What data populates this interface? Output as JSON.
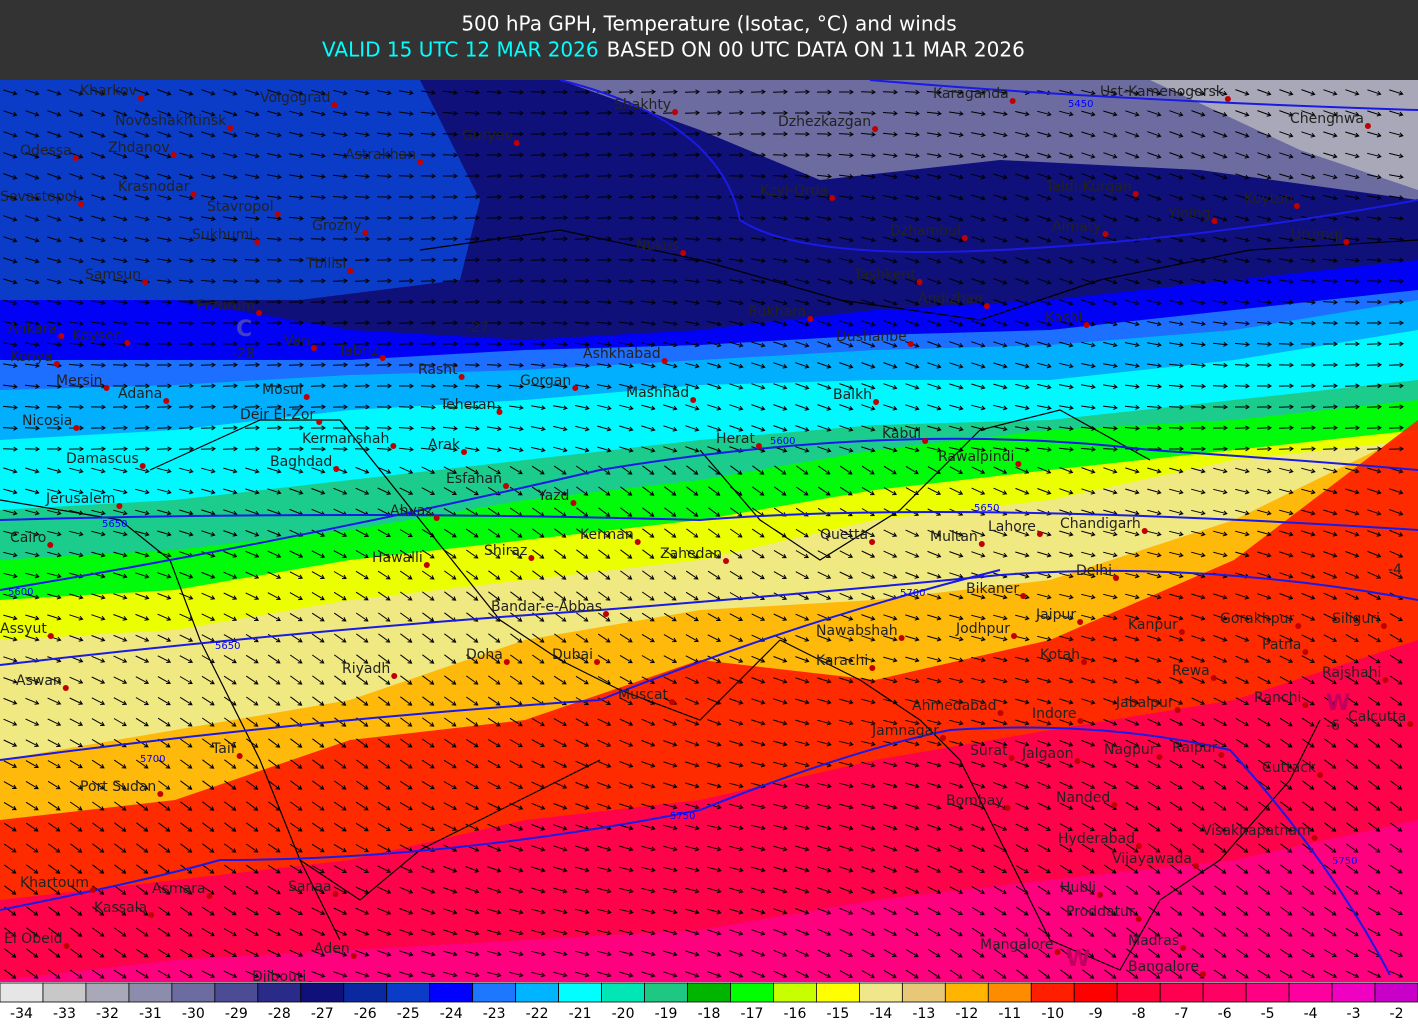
{
  "header": {
    "title": "500 hPa GPH, Temperature (Isotac, °C) and winds",
    "valid": "VALID 15 UTC 12 MAR 2026",
    "based": "BASED ON 00 UTC DATA ON 11 MAR 2026"
  },
  "cities": [
    "Kharkov",
    "Volgograd",
    "Novoshakhtinsk",
    "Odessa",
    "Zhdanov",
    "Astrakhan",
    "Guryev",
    "Shakhty",
    "Dzhezkazgan",
    "Karaganda",
    "Ust-Kamenogorsk",
    "Chenghwa",
    "Sevastopol",
    "Krasnodar",
    "Stavropol",
    "Kzyl-Orda",
    "Taldi-Kurgan",
    "Yining",
    "Kuytun",
    "Sukhumi",
    "Grozny",
    "Nukus",
    "Dzhambul",
    "Almaty",
    "Urumqi",
    "Samsun",
    "Tbilisi",
    "Tashkent",
    "Andizhan",
    "Erzurum",
    "Bukhara",
    "Kashi",
    "Ankara",
    "Kayseri",
    "Van",
    "Tabriz",
    "Dushanbe",
    "Ashkhabad",
    "Konya",
    "Mersin",
    "Mosul",
    "Rasht",
    "Gorgan",
    "Mashhad",
    "Adana",
    "Balkh",
    "Deir El-Zor",
    "Nicosia",
    "Teheran",
    "Kermanshah",
    "Arak",
    "Herat",
    "Kabul",
    "Damascus",
    "Baghdad",
    "Rawalpindi",
    "Esfahan",
    "Jerusalem",
    "Yazd",
    "Ahvaz",
    "Lahore",
    "Chandigarh",
    "Cairo",
    "Kerman",
    "Quetta",
    "Multan",
    "Hawalli",
    "Shiraz",
    "Zahedan",
    "Delhi",
    "Bikaner",
    "Bandar-e-Abbas",
    "Assyut",
    "Jaipur",
    "Kanpur",
    "Gorakhpur",
    "Siliguri",
    "Nawabshah",
    "Jodhpur",
    "Patna",
    "Doha",
    "Dubai",
    "Karachi",
    "Kotah",
    "Riyadh",
    "Rewa",
    "Rajshahi",
    "Aswan",
    "Muscat",
    "Ranchi",
    "Ahmedabad",
    "Indore",
    "Jabalpur",
    "Calcutta",
    "Jamnagar",
    "Taif",
    "Surat",
    "Jalgaon",
    "Nagpur",
    "Raipur",
    "Cuttack",
    "Port Sudan",
    "Bombay",
    "Nanded",
    "Visakhapatnam",
    "Hyderabad",
    "Vijayawada",
    "Khartoum",
    "Asmara",
    "Sanaa",
    "Hubli",
    "Kassala",
    "Proddatur",
    "El Obeid",
    "Madras",
    "Aden",
    "Mangalore",
    "Bangalore",
    "Djibouti"
  ],
  "contour_labels": [
    "5450",
    "5600",
    "5650",
    "5650",
    "5600",
    "5650",
    "5700",
    "5700",
    "5750",
    "5750"
  ],
  "isotac_labels": [
    "-28",
    "-27",
    "-4",
    "-6"
  ],
  "centers": [
    "C",
    "W",
    "W"
  ],
  "legend": [
    {
      "value": -34,
      "color": "#e6e6e6"
    },
    {
      "value": -33,
      "color": "#c8c8c8"
    },
    {
      "value": -32,
      "color": "#a8a8b8"
    },
    {
      "value": -31,
      "color": "#8c8cac"
    },
    {
      "value": -30,
      "color": "#6c6ca0"
    },
    {
      "value": -29,
      "color": "#4c4c94"
    },
    {
      "value": -28,
      "color": "#2a2a88"
    },
    {
      "value": -27,
      "color": "#10107a"
    },
    {
      "value": -26,
      "color": "#0a28a0"
    },
    {
      "value": -25,
      "color": "#0a3cc8"
    },
    {
      "value": -24,
      "color": "#0000ff"
    },
    {
      "value": -23,
      "color": "#1e78ff"
    },
    {
      "value": -22,
      "color": "#00b4ff"
    },
    {
      "value": -21,
      "color": "#00ffff"
    },
    {
      "value": -20,
      "color": "#00e6b4"
    },
    {
      "value": -19,
      "color": "#1ec882"
    },
    {
      "value": -18,
      "color": "#00b400"
    },
    {
      "value": -17,
      "color": "#00ff00"
    },
    {
      "value": -16,
      "color": "#c8ff00"
    },
    {
      "value": -15,
      "color": "#ffff00"
    },
    {
      "value": -14,
      "color": "#f0e68c"
    },
    {
      "value": -13,
      "color": "#e6c878"
    },
    {
      "value": -12,
      "color": "#ffb400"
    },
    {
      "value": -11,
      "color": "#ff8c00"
    },
    {
      "value": -10,
      "color": "#ff1e00"
    },
    {
      "value": -9,
      "color": "#ff0000"
    },
    {
      "value": -8,
      "color": "#ff0032"
    },
    {
      "value": -7,
      "color": "#ff0050"
    },
    {
      "value": -6,
      "color": "#ff0064"
    },
    {
      "value": -5,
      "color": "#ff0082"
    },
    {
      "value": -4,
      "color": "#ff00a0"
    },
    {
      "value": -3,
      "color": "#f000c0"
    },
    {
      "value": -2,
      "color": "#c800c8"
    }
  ]
}
